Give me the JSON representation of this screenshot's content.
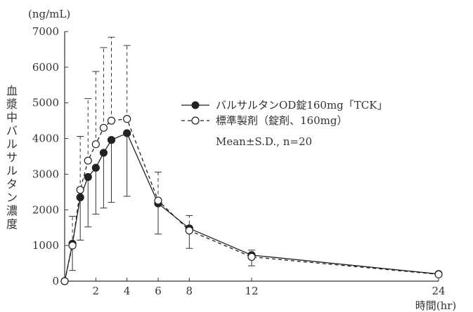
{
  "chart_data": {
    "type": "line",
    "y_unit": "(ng/mL)",
    "ylabel": "血漿中バルサルタン濃度",
    "xlabel": "時間(hr)",
    "x": [
      0,
      0.5,
      1,
      1.5,
      2,
      2.5,
      3,
      4,
      6,
      8,
      12,
      24
    ],
    "x_ticks": [
      2,
      4,
      6,
      8,
      12,
      24
    ],
    "y_ticks": [
      0,
      1000,
      2000,
      3000,
      4000,
      5000,
      6000,
      7000
    ],
    "xlim": [
      0,
      24
    ],
    "ylim": [
      0,
      7000
    ],
    "legend_position": "upper-right",
    "annotation": "Mean±S.D., n=20",
    "series": [
      {
        "name": "バルサルタンOD錠160mg「TCK」",
        "marker": "filled-circle",
        "line": "solid",
        "color": "#222222",
        "values": [
          0,
          1050,
          2350,
          2920,
          3180,
          3600,
          3960,
          4150,
          2180,
          1480,
          730,
          200
        ],
        "sd": [
          0,
          750,
          1200,
          1400,
          1300,
          1550,
          1750,
          1770,
          860,
          560,
          300,
          60
        ]
      },
      {
        "name": "標準製剤（錠剤、160mg）",
        "marker": "open-circle",
        "line": "dashed",
        "color": "#222222",
        "values": [
          0,
          1000,
          2560,
          3380,
          3840,
          4300,
          4500,
          4550,
          2260,
          1420,
          680,
          190
        ],
        "sd": [
          0,
          820,
          1500,
          1740,
          2040,
          2250,
          2340,
          2060,
          800,
          420,
          190,
          50
        ]
      }
    ]
  }
}
